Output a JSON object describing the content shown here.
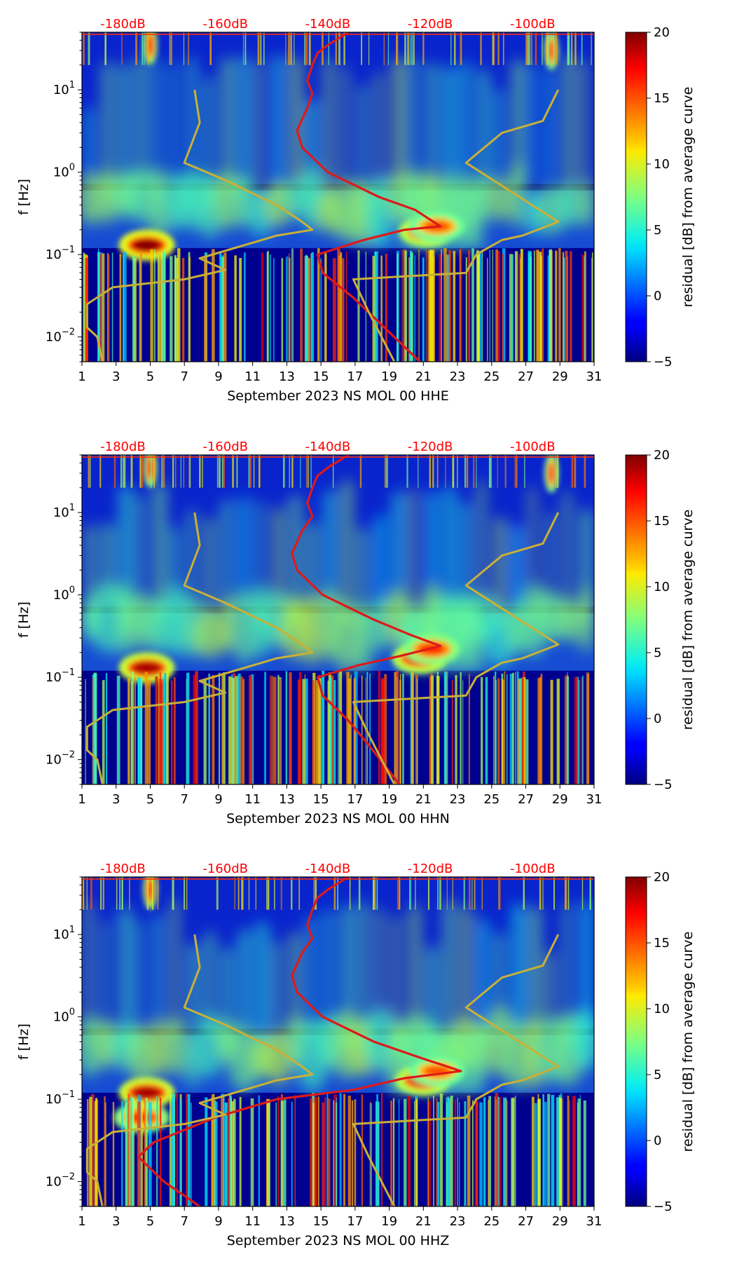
{
  "figure": {
    "colors": {
      "db_scale": "#ff0000",
      "psd_curve": "#dd1a1a",
      "noise_model": "#c9b037",
      "axis": "#000000"
    }
  },
  "chart_data": [
    {
      "type": "heatmap",
      "title": "",
      "xlabel": "September 2023 NS MOL 00 HHE",
      "ylabel": "f [Hz]",
      "xlim": [
        1,
        31
      ],
      "ylim": [
        0.005,
        50
      ],
      "yscale": "log",
      "x_ticks": [
        "1",
        "3",
        "5",
        "7",
        "9",
        "11",
        "13",
        "15",
        "17",
        "19",
        "21",
        "23",
        "25",
        "27",
        "29",
        "31"
      ],
      "y_ticks": [
        {
          "value": 0.01,
          "base": "10",
          "exp": "−2"
        },
        {
          "value": 0.1,
          "base": "10",
          "exp": "−1"
        },
        {
          "value": 1,
          "base": "10",
          "exp": "0"
        },
        {
          "value": 10,
          "base": "10",
          "exp": "1"
        }
      ],
      "top_axis": {
        "label_values": [
          -180,
          -160,
          -140,
          -120,
          -100
        ],
        "labels": [
          "-180dB",
          "-160dB",
          "-140dB",
          "-120dB",
          "-100dB"
        ],
        "range_db": [
          -188,
          -88
        ]
      },
      "colorbar": {
        "label": "residual [dB] from average curve",
        "range": [
          -5,
          20
        ],
        "tick_values": [
          -5,
          0,
          5,
          10,
          15,
          20
        ],
        "tick_labels": [
          "−5",
          "0",
          "5",
          "10",
          "15",
          "20"
        ]
      },
      "hot_spots": [
        {
          "x": 4.8,
          "f": 0.13,
          "level": 20
        },
        {
          "x": 21.2,
          "f": 0.19,
          "level": 18
        },
        {
          "x": 21.8,
          "f": 0.22,
          "level": 15
        },
        {
          "x": 5.0,
          "f": 35,
          "level": 17
        },
        {
          "x": 28.5,
          "f": 30,
          "level": 16
        }
      ],
      "series": [
        {
          "name": "PSD (dB)",
          "points": [
            [
              -136.0,
              50.0
            ],
            [
              -140.0,
              35.0
            ],
            [
              -142.0,
              28.0
            ],
            [
              -143.0,
              20.0
            ],
            [
              -144.0,
              13.0
            ],
            [
              -143.0,
              9.0
            ],
            [
              -144.0,
              6.0
            ],
            [
              -146.0,
              3.2
            ],
            [
              -145.0,
              2.0
            ],
            [
              -140.0,
              1.0
            ],
            [
              -130.0,
              0.5
            ],
            [
              -123.0,
              0.35
            ],
            [
              -118.0,
              0.22
            ],
            [
              -125.0,
              0.2
            ],
            [
              -133.0,
              0.15
            ],
            [
              -142.0,
              0.1
            ],
            [
              -141.0,
              0.06
            ],
            [
              -135.0,
              0.03
            ],
            [
              -130.0,
              0.015
            ],
            [
              -122.0,
              0.005
            ]
          ]
        },
        {
          "name": "noise model low (dB)",
          "points": [
            [
              -166.0,
              10.0
            ],
            [
              -165.0,
              4.0
            ],
            [
              -168.0,
              1.3
            ],
            [
              -160.0,
              0.8
            ],
            [
              -150.0,
              0.4
            ],
            [
              -145.0,
              0.25
            ],
            [
              -143.0,
              0.2
            ],
            [
              -150.0,
              0.17
            ],
            [
              -165.0,
              0.09
            ],
            [
              -160.0,
              0.065
            ],
            [
              -168.0,
              0.05
            ],
            [
              -182.0,
              0.04
            ],
            [
              -187.0,
              0.025
            ],
            [
              -187.0,
              0.013
            ],
            [
              -185.0,
              0.01
            ],
            [
              -184.0,
              0.005
            ]
          ]
        },
        {
          "name": "noise model high (dB)",
          "points": [
            [
              -95.0,
              10.0
            ],
            [
              -98.0,
              4.2
            ],
            [
              -106.0,
              3.0
            ],
            [
              -113.0,
              1.3
            ],
            [
              -95.0,
              0.25
            ],
            [
              -102.0,
              0.17
            ],
            [
              -106.0,
              0.15
            ],
            [
              -111.0,
              0.1
            ],
            [
              -113.0,
              0.06
            ],
            [
              -135.0,
              0.05
            ],
            [
              -135.0,
              0.05
            ],
            [
              -132.0,
              0.02
            ],
            [
              -127.0,
              0.005
            ]
          ]
        }
      ]
    },
    {
      "type": "heatmap",
      "title": "",
      "xlabel": "September 2023 NS MOL 00 HHN",
      "ylabel": "f [Hz]",
      "xlim": [
        1,
        31
      ],
      "ylim": [
        0.005,
        50
      ],
      "yscale": "log",
      "x_ticks": [
        "1",
        "3",
        "5",
        "7",
        "9",
        "11",
        "13",
        "15",
        "17",
        "19",
        "21",
        "23",
        "25",
        "27",
        "29",
        "31"
      ],
      "y_ticks": [
        {
          "value": 0.01,
          "base": "10",
          "exp": "−2"
        },
        {
          "value": 0.1,
          "base": "10",
          "exp": "−1"
        },
        {
          "value": 1,
          "base": "10",
          "exp": "0"
        },
        {
          "value": 10,
          "base": "10",
          "exp": "1"
        }
      ],
      "top_axis": {
        "label_values": [
          -180,
          -160,
          -140,
          -120,
          -100
        ],
        "labels": [
          "-180dB",
          "-160dB",
          "-140dB",
          "-120dB",
          "-100dB"
        ],
        "range_db": [
          -188,
          -88
        ]
      },
      "colorbar": {
        "label": "residual [dB] from average curve",
        "range": [
          -5,
          20
        ],
        "tick_values": [
          -5,
          0,
          5,
          10,
          15,
          20
        ],
        "tick_labels": [
          "−5",
          "0",
          "5",
          "10",
          "15",
          "20"
        ]
      },
      "hot_spots": [
        {
          "x": 4.8,
          "f": 0.13,
          "level": 19
        },
        {
          "x": 20.8,
          "f": 0.17,
          "level": 18
        },
        {
          "x": 21.5,
          "f": 0.22,
          "level": 16
        },
        {
          "x": 5.0,
          "f": 35,
          "level": 17
        },
        {
          "x": 28.5,
          "f": 30,
          "level": 16
        }
      ],
      "series": [
        {
          "name": "PSD (dB)",
          "points": [
            [
              -136.0,
              50.0
            ],
            [
              -140.0,
              35.0
            ],
            [
              -142.0,
              28.0
            ],
            [
              -143.0,
              20.0
            ],
            [
              -144.0,
              13.0
            ],
            [
              -143.0,
              9.0
            ],
            [
              -145.0,
              6.0
            ],
            [
              -147.0,
              3.2
            ],
            [
              -146.0,
              2.0
            ],
            [
              -141.0,
              1.0
            ],
            [
              -131.0,
              0.5
            ],
            [
              -124.0,
              0.33
            ],
            [
              -118.0,
              0.24
            ],
            [
              -126.0,
              0.18
            ],
            [
              -134.0,
              0.14
            ],
            [
              -142.0,
              0.1
            ],
            [
              -141.0,
              0.06
            ],
            [
              -136.0,
              0.03
            ],
            [
              -132.0,
              0.015
            ],
            [
              -126.0,
              0.005
            ]
          ]
        },
        {
          "name": "noise model low (dB)",
          "points": [
            [
              -166.0,
              10.0
            ],
            [
              -165.0,
              4.0
            ],
            [
              -168.0,
              1.3
            ],
            [
              -160.0,
              0.8
            ],
            [
              -150.0,
              0.4
            ],
            [
              -145.0,
              0.25
            ],
            [
              -143.0,
              0.2
            ],
            [
              -150.0,
              0.17
            ],
            [
              -165.0,
              0.09
            ],
            [
              -160.0,
              0.065
            ],
            [
              -168.0,
              0.05
            ],
            [
              -182.0,
              0.04
            ],
            [
              -187.0,
              0.025
            ],
            [
              -187.0,
              0.013
            ],
            [
              -185.0,
              0.01
            ],
            [
              -184.0,
              0.005
            ]
          ]
        },
        {
          "name": "noise model high (dB)",
          "points": [
            [
              -95.0,
              10.0
            ],
            [
              -98.0,
              4.2
            ],
            [
              -106.0,
              3.0
            ],
            [
              -113.0,
              1.3
            ],
            [
              -95.0,
              0.25
            ],
            [
              -102.0,
              0.17
            ],
            [
              -106.0,
              0.15
            ],
            [
              -111.0,
              0.1
            ],
            [
              -113.0,
              0.06
            ],
            [
              -135.0,
              0.05
            ],
            [
              -135.0,
              0.05
            ],
            [
              -132.0,
              0.02
            ],
            [
              -127.0,
              0.005
            ]
          ]
        }
      ]
    },
    {
      "type": "heatmap",
      "title": "",
      "xlabel": "September 2023 NS MOL 00 HHZ",
      "ylabel": "f [Hz]",
      "xlim": [
        1,
        31
      ],
      "ylim": [
        0.005,
        50
      ],
      "yscale": "log",
      "x_ticks": [
        "1",
        "3",
        "5",
        "7",
        "9",
        "11",
        "13",
        "15",
        "17",
        "19",
        "21",
        "23",
        "25",
        "27",
        "29",
        "31"
      ],
      "y_ticks": [
        {
          "value": 0.01,
          "base": "10",
          "exp": "−2"
        },
        {
          "value": 0.1,
          "base": "10",
          "exp": "−1"
        },
        {
          "value": 1,
          "base": "10",
          "exp": "0"
        },
        {
          "value": 10,
          "base": "10",
          "exp": "1"
        }
      ],
      "top_axis": {
        "label_values": [
          -180,
          -160,
          -140,
          -120,
          -100
        ],
        "labels": [
          "-180dB",
          "-160dB",
          "-140dB",
          "-120dB",
          "-100dB"
        ],
        "range_db": [
          -188,
          -88
        ]
      },
      "colorbar": {
        "label": "residual [dB] from average curve",
        "range": [
          -5,
          20
        ],
        "tick_values": [
          -5,
          0,
          5,
          10,
          15,
          20
        ],
        "tick_labels": [
          "−5",
          "0",
          "5",
          "10",
          "15",
          "20"
        ]
      },
      "hot_spots": [
        {
          "x": 4.8,
          "f": 0.12,
          "level": 19
        },
        {
          "x": 4.5,
          "f": 0.06,
          "level": 16
        },
        {
          "x": 21.0,
          "f": 0.17,
          "level": 18
        },
        {
          "x": 21.8,
          "f": 0.22,
          "level": 15
        },
        {
          "x": 5.0,
          "f": 35,
          "level": 17
        }
      ],
      "series": [
        {
          "name": "PSD (dB)",
          "points": [
            [
              -136.0,
              50.0
            ],
            [
              -140.0,
              35.0
            ],
            [
              -142.0,
              28.0
            ],
            [
              -143.0,
              20.0
            ],
            [
              -144.0,
              13.0
            ],
            [
              -143.0,
              9.0
            ],
            [
              -145.0,
              6.0
            ],
            [
              -147.0,
              3.2
            ],
            [
              -146.0,
              2.0
            ],
            [
              -141.0,
              1.0
            ],
            [
              -131.0,
              0.5
            ],
            [
              -122.0,
              0.32
            ],
            [
              -114.0,
              0.22
            ],
            [
              -125.0,
              0.18
            ],
            [
              -135.0,
              0.13
            ],
            [
              -150.0,
              0.1
            ],
            [
              -162.0,
              0.06
            ],
            [
              -174.0,
              0.03
            ],
            [
              -177.0,
              0.02
            ],
            [
              -172.0,
              0.01
            ],
            [
              -165.0,
              0.005
            ]
          ]
        },
        {
          "name": "noise model low (dB)",
          "points": [
            [
              -166.0,
              10.0
            ],
            [
              -165.0,
              4.0
            ],
            [
              -168.0,
              1.3
            ],
            [
              -160.0,
              0.8
            ],
            [
              -150.0,
              0.4
            ],
            [
              -145.0,
              0.25
            ],
            [
              -143.0,
              0.2
            ],
            [
              -150.0,
              0.17
            ],
            [
              -165.0,
              0.09
            ],
            [
              -160.0,
              0.065
            ],
            [
              -168.0,
              0.05
            ],
            [
              -182.0,
              0.04
            ],
            [
              -187.0,
              0.025
            ],
            [
              -187.0,
              0.013
            ],
            [
              -185.0,
              0.01
            ],
            [
              -184.0,
              0.005
            ]
          ]
        },
        {
          "name": "noise model high (dB)",
          "points": [
            [
              -95.0,
              10.0
            ],
            [
              -98.0,
              4.2
            ],
            [
              -106.0,
              3.0
            ],
            [
              -113.0,
              1.3
            ],
            [
              -95.0,
              0.25
            ],
            [
              -102.0,
              0.17
            ],
            [
              -106.0,
              0.15
            ],
            [
              -111.0,
              0.1
            ],
            [
              -113.0,
              0.06
            ],
            [
              -135.0,
              0.05
            ],
            [
              -135.0,
              0.05
            ],
            [
              -132.0,
              0.02
            ],
            [
              -127.0,
              0.005
            ]
          ]
        }
      ]
    }
  ]
}
